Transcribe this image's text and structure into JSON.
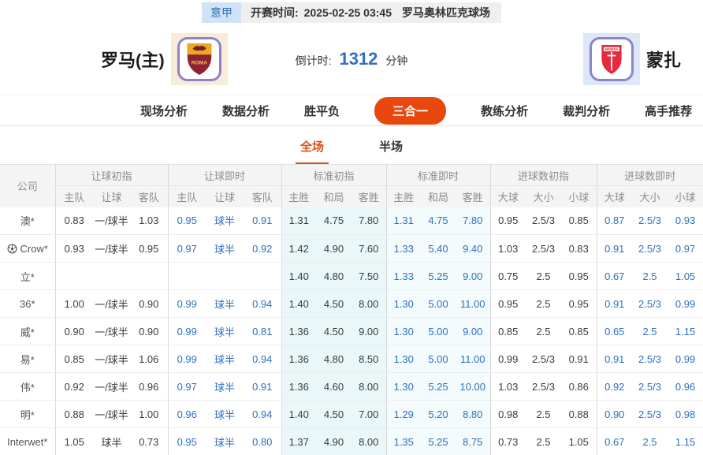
{
  "colors": {
    "accent": "#e8480e",
    "accent2": "#d8511f",
    "blue": "#2e6fc1",
    "badge-bg": "#cfe2f6",
    "bar-bg": "#efefef",
    "cyan1": "#e9f7f9",
    "cyan2": "#f3fbfd"
  },
  "top_bar": {
    "league": "意甲",
    "kickoff_label": "开赛时间:",
    "kickoff_time": "2025-02-25 03:45",
    "venue": "罗马奥林匹克球场"
  },
  "header": {
    "home_team": "罗马(主)",
    "away_team": "蒙扎",
    "home_logo": "roma-crest-icon",
    "away_logo": "monza-crest-icon",
    "countdown_label": "倒计时:",
    "countdown_value": "1312",
    "countdown_unit": "分钟"
  },
  "nav": {
    "items": [
      {
        "id": "live-analysis",
        "label": "现场分析",
        "active": false
      },
      {
        "id": "data-analysis",
        "label": "数据分析",
        "active": false
      },
      {
        "id": "win-draw-lose",
        "label": "胜平负",
        "active": false
      },
      {
        "id": "three-in-one",
        "label": "三合一",
        "active": true
      },
      {
        "id": "coach-analysis",
        "label": "教练分析",
        "active": false
      },
      {
        "id": "referee-analysis",
        "label": "裁判分析",
        "active": false
      },
      {
        "id": "expert-picks",
        "label": "高手推荐",
        "active": false
      }
    ]
  },
  "sub_tabs": {
    "items": [
      {
        "id": "full-match",
        "label": "全场",
        "active": true
      },
      {
        "id": "half-match",
        "label": "半场",
        "active": false
      }
    ]
  },
  "odds_table": {
    "company_header": "公司",
    "groups": [
      {
        "id": "handicap-initial",
        "title": "让球初指",
        "cols": [
          "主队",
          "让球",
          "客队"
        ],
        "tone": "dark",
        "bg": "none"
      },
      {
        "id": "handicap-live",
        "title": "让球即时",
        "cols": [
          "主队",
          "让球",
          "客队"
        ],
        "tone": "blue",
        "bg": "none"
      },
      {
        "id": "standard-initial",
        "title": "标准初指",
        "cols": [
          "主胜",
          "和局",
          "客胜"
        ],
        "tone": "dark",
        "bg": "cyan1"
      },
      {
        "id": "standard-live",
        "title": "标准即时",
        "cols": [
          "主胜",
          "和局",
          "客胜"
        ],
        "tone": "blue",
        "bg": "cyan2"
      },
      {
        "id": "goals-initial",
        "title": "进球数初指",
        "cols": [
          "大球",
          "大小",
          "小球"
        ],
        "tone": "dark",
        "bg": "none"
      },
      {
        "id": "goals-live",
        "title": "进球数即时",
        "cols": [
          "大球",
          "大小",
          "小球"
        ],
        "tone": "blue",
        "bg": "none"
      }
    ],
    "rows": [
      {
        "company": "澳*",
        "icon": null,
        "values": [
          [
            "0.83",
            "一/球半",
            "1.03"
          ],
          [
            "0.95",
            "球半",
            "0.91"
          ],
          [
            "1.31",
            "4.75",
            "7.80"
          ],
          [
            "1.31",
            "4.75",
            "7.80"
          ],
          [
            "0.95",
            "2.5/3",
            "0.85"
          ],
          [
            "0.87",
            "2.5/3",
            "0.93"
          ]
        ]
      },
      {
        "company": "Crow*",
        "icon": "ball-icon",
        "values": [
          [
            "0.93",
            "一/球半",
            "0.95"
          ],
          [
            "0.97",
            "球半",
            "0.92"
          ],
          [
            "1.42",
            "4.90",
            "7.60"
          ],
          [
            "1.33",
            "5.40",
            "9.40"
          ],
          [
            "1.03",
            "2.5/3",
            "0.83"
          ],
          [
            "0.91",
            "2.5/3",
            "0.97"
          ]
        ]
      },
      {
        "company": "立*",
        "icon": null,
        "values": [
          [
            "",
            "",
            ""
          ],
          [
            "",
            "",
            ""
          ],
          [
            "1.40",
            "4.80",
            "7.50"
          ],
          [
            "1.33",
            "5.25",
            "9.00"
          ],
          [
            "0.75",
            "2.5",
            "0.95"
          ],
          [
            "0.67",
            "2.5",
            "1.05"
          ]
        ]
      },
      {
        "company": "36*",
        "icon": null,
        "values": [
          [
            "1.00",
            "一/球半",
            "0.90"
          ],
          [
            "0.99",
            "球半",
            "0.94"
          ],
          [
            "1.40",
            "4.50",
            "8.00"
          ],
          [
            "1.30",
            "5.00",
            "11.00"
          ],
          [
            "0.95",
            "2.5",
            "0.95"
          ],
          [
            "0.91",
            "2.5/3",
            "0.99"
          ]
        ]
      },
      {
        "company": "威*",
        "icon": null,
        "values": [
          [
            "0.90",
            "一/球半",
            "0.90"
          ],
          [
            "0.99",
            "球半",
            "0.81"
          ],
          [
            "1.36",
            "4.50",
            "9.00"
          ],
          [
            "1.30",
            "5.00",
            "9.00"
          ],
          [
            "0.85",
            "2.5",
            "0.85"
          ],
          [
            "0.65",
            "2.5",
            "1.15"
          ]
        ]
      },
      {
        "company": "易*",
        "icon": null,
        "values": [
          [
            "0.85",
            "一/球半",
            "1.06"
          ],
          [
            "0.99",
            "球半",
            "0.94"
          ],
          [
            "1.36",
            "4.80",
            "8.50"
          ],
          [
            "1.30",
            "5.00",
            "11.00"
          ],
          [
            "0.99",
            "2.5/3",
            "0.91"
          ],
          [
            "0.91",
            "2.5/3",
            "0.99"
          ]
        ]
      },
      {
        "company": "伟*",
        "icon": null,
        "values": [
          [
            "0.92",
            "一/球半",
            "0.96"
          ],
          [
            "0.97",
            "球半",
            "0.91"
          ],
          [
            "1.36",
            "4.60",
            "8.00"
          ],
          [
            "1.30",
            "5.25",
            "10.00"
          ],
          [
            "1.03",
            "2.5/3",
            "0.86"
          ],
          [
            "0.92",
            "2.5/3",
            "0.96"
          ]
        ]
      },
      {
        "company": "明*",
        "icon": null,
        "values": [
          [
            "0.88",
            "一/球半",
            "1.00"
          ],
          [
            "0.96",
            "球半",
            "0.94"
          ],
          [
            "1.40",
            "4.50",
            "7.00"
          ],
          [
            "1.29",
            "5.20",
            "8.80"
          ],
          [
            "0.98",
            "2.5",
            "0.88"
          ],
          [
            "0.90",
            "2.5/3",
            "0.98"
          ]
        ]
      },
      {
        "company": "Interwet*",
        "icon": null,
        "values": [
          [
            "1.05",
            "球半",
            "0.73"
          ],
          [
            "0.95",
            "球半",
            "0.80"
          ],
          [
            "1.37",
            "4.90",
            "8.00"
          ],
          [
            "1.35",
            "5.25",
            "8.75"
          ],
          [
            "0.73",
            "2.5",
            "1.05"
          ],
          [
            "0.67",
            "2.5",
            "1.15"
          ]
        ]
      }
    ]
  }
}
